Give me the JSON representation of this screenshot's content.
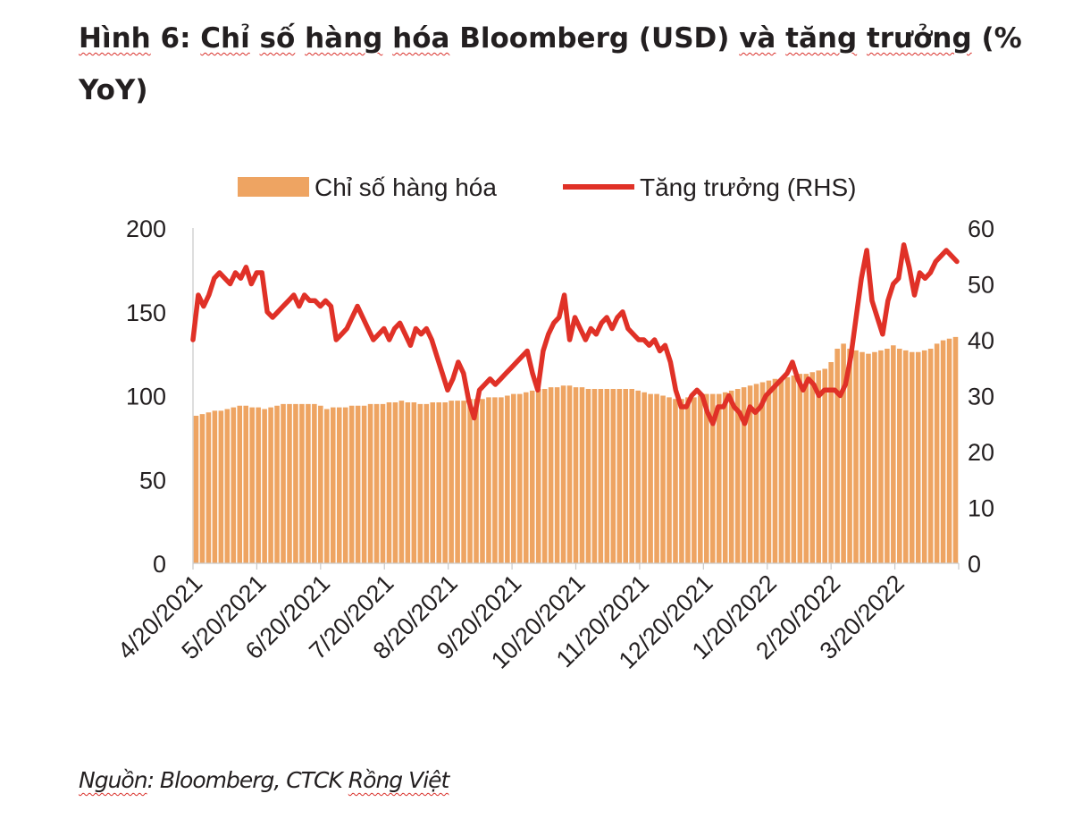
{
  "title": {
    "part1": "Hình",
    "part2": " 6: ",
    "part3": "Chỉ",
    "part4": " ",
    "part5": "số",
    "part6": " ",
    "part7": "hàng",
    "part8": " ",
    "part9": "hóa",
    "part10": " Bloomberg (USD) ",
    "part11": "và",
    "part12": " ",
    "part13": "tăng",
    "part14": " ",
    "part15": "trưởng",
    "part16": " (% YoY)"
  },
  "source_prefix": "Nguồn",
  "source_rest": ": Bloomberg, CTCK ",
  "source_brand": "Rồng Việt",
  "colors": {
    "bar": "#eea462",
    "line": "#e03127",
    "axis": "#c9c9c9",
    "text": "#231f20"
  },
  "chart_data": {
    "type": "bar+line",
    "title": "Hình 6: Chỉ số hàng hóa Bloomberg (USD) và tăng trưởng (% YoY)",
    "legend": [
      "Chỉ số hàng hóa",
      "Tăng trưởng (RHS)"
    ],
    "legend_position": "top-center",
    "x_tick_labels": [
      "4/20/2021",
      "5/20/2021",
      "6/20/2021",
      "7/20/2021",
      "8/20/2021",
      "9/20/2021",
      "10/20/2021",
      "11/20/2021",
      "12/20/2021",
      "1/20/2022",
      "2/20/2022",
      "3/20/2022"
    ],
    "y_left": {
      "min": 0,
      "max": 200,
      "ticks": [
        0,
        50,
        100,
        150,
        200
      ]
    },
    "y_right": {
      "min": 0,
      "max": 60,
      "ticks": [
        0,
        10,
        20,
        30,
        40,
        50,
        60
      ]
    },
    "grid": false,
    "series": [
      {
        "name": "Chỉ số hàng hóa",
        "type": "bar",
        "axis": "left",
        "weekly_values": [
          88,
          89,
          90,
          91,
          91,
          92,
          93,
          94,
          94,
          93,
          93,
          92,
          93,
          94,
          95,
          95,
          95,
          95,
          95,
          95,
          94,
          92,
          93,
          93,
          93,
          94,
          94,
          94,
          95,
          95,
          95,
          96,
          96,
          97,
          96,
          96,
          95,
          95,
          96,
          96,
          96,
          97,
          97,
          97,
          98,
          98,
          98,
          99,
          99,
          99,
          100,
          101,
          101,
          102,
          103,
          104,
          104,
          105,
          105,
          106,
          106,
          105,
          105,
          104,
          104,
          104,
          104,
          104,
          104,
          104,
          104,
          103,
          102,
          101,
          101,
          100,
          99,
          98,
          98,
          99,
          99,
          100,
          101,
          101,
          101,
          102,
          103,
          104,
          105,
          106,
          107,
          108,
          109,
          110,
          110,
          111,
          112,
          113,
          113,
          114,
          115,
          116,
          120,
          128,
          131,
          128,
          127,
          126,
          125,
          126,
          127,
          128,
          130,
          128,
          127,
          126,
          126,
          127,
          128,
          131,
          133,
          134,
          135
        ]
      },
      {
        "name": "Tăng trưởng (RHS)",
        "type": "line",
        "axis": "right",
        "points": [
          [
            0,
            40
          ],
          [
            1,
            48
          ],
          [
            2,
            46
          ],
          [
            3,
            48
          ],
          [
            4,
            51
          ],
          [
            5,
            52
          ],
          [
            6,
            51
          ],
          [
            7,
            50
          ],
          [
            8,
            52
          ],
          [
            9,
            51
          ],
          [
            10,
            53
          ],
          [
            11,
            50
          ],
          [
            12,
            52
          ],
          [
            13,
            52
          ],
          [
            14,
            45
          ],
          [
            15,
            44
          ],
          [
            16,
            45
          ],
          [
            17,
            46
          ],
          [
            18,
            47
          ],
          [
            19,
            48
          ],
          [
            20,
            46
          ],
          [
            21,
            48
          ],
          [
            22,
            47
          ],
          [
            23,
            47
          ],
          [
            24,
            46
          ],
          [
            25,
            47
          ],
          [
            26,
            46
          ],
          [
            27,
            40
          ],
          [
            28,
            41
          ],
          [
            29,
            42
          ],
          [
            30,
            44
          ],
          [
            31,
            46
          ],
          [
            32,
            44
          ],
          [
            33,
            42
          ],
          [
            34,
            40
          ],
          [
            35,
            41
          ],
          [
            36,
            42
          ],
          [
            37,
            40
          ],
          [
            38,
            42
          ],
          [
            39,
            43
          ],
          [
            40,
            41
          ],
          [
            41,
            39
          ],
          [
            42,
            42
          ],
          [
            43,
            41
          ],
          [
            44,
            42
          ],
          [
            45,
            40
          ],
          [
            46,
            37
          ],
          [
            47,
            34
          ],
          [
            48,
            31
          ],
          [
            49,
            33
          ],
          [
            50,
            36
          ],
          [
            51,
            34
          ],
          [
            52,
            29
          ],
          [
            53,
            26
          ],
          [
            54,
            31
          ],
          [
            55,
            32
          ],
          [
            56,
            33
          ],
          [
            57,
            32
          ],
          [
            58,
            33
          ],
          [
            59,
            34
          ],
          [
            60,
            35
          ],
          [
            61,
            36
          ],
          [
            62,
            37
          ],
          [
            63,
            38
          ],
          [
            64,
            34
          ],
          [
            65,
            31
          ],
          [
            66,
            38
          ],
          [
            67,
            41
          ],
          [
            68,
            43
          ],
          [
            69,
            44
          ],
          [
            70,
            48
          ],
          [
            71,
            40
          ],
          [
            72,
            44
          ],
          [
            73,
            42
          ],
          [
            74,
            40
          ],
          [
            75,
            42
          ],
          [
            76,
            41
          ],
          [
            77,
            43
          ],
          [
            78,
            44
          ],
          [
            79,
            42
          ],
          [
            80,
            44
          ],
          [
            81,
            45
          ],
          [
            82,
            42
          ],
          [
            83,
            41
          ],
          [
            84,
            40
          ],
          [
            85,
            40
          ],
          [
            86,
            39
          ],
          [
            87,
            40
          ],
          [
            88,
            38
          ],
          [
            89,
            39
          ],
          [
            90,
            36
          ],
          [
            91,
            31
          ],
          [
            92,
            28
          ],
          [
            93,
            28
          ],
          [
            94,
            30
          ],
          [
            95,
            31
          ],
          [
            96,
            30
          ],
          [
            97,
            27
          ],
          [
            98,
            25
          ],
          [
            99,
            28
          ],
          [
            100,
            28
          ],
          [
            101,
            30
          ],
          [
            102,
            28
          ],
          [
            103,
            27
          ],
          [
            104,
            25
          ],
          [
            105,
            28
          ],
          [
            106,
            27
          ],
          [
            107,
            28
          ],
          [
            108,
            30
          ],
          [
            109,
            31
          ],
          [
            110,
            32
          ],
          [
            111,
            33
          ],
          [
            112,
            34
          ],
          [
            113,
            36
          ],
          [
            114,
            33
          ],
          [
            115,
            31
          ],
          [
            116,
            33
          ],
          [
            117,
            32
          ],
          [
            118,
            30
          ],
          [
            119,
            31
          ],
          [
            120,
            31
          ],
          [
            121,
            31
          ],
          [
            122,
            30
          ],
          [
            123,
            32
          ],
          [
            124,
            37
          ],
          [
            125,
            44
          ],
          [
            126,
            51
          ],
          [
            127,
            56
          ],
          [
            128,
            47
          ],
          [
            129,
            44
          ],
          [
            130,
            41
          ],
          [
            131,
            47
          ],
          [
            132,
            50
          ],
          [
            133,
            51
          ],
          [
            134,
            57
          ],
          [
            135,
            53
          ],
          [
            136,
            48
          ],
          [
            137,
            52
          ],
          [
            138,
            51
          ],
          [
            139,
            52
          ],
          [
            140,
            54
          ],
          [
            141,
            55
          ],
          [
            142,
            56
          ],
          [
            143,
            55
          ],
          [
            144,
            54
          ]
        ]
      }
    ]
  }
}
